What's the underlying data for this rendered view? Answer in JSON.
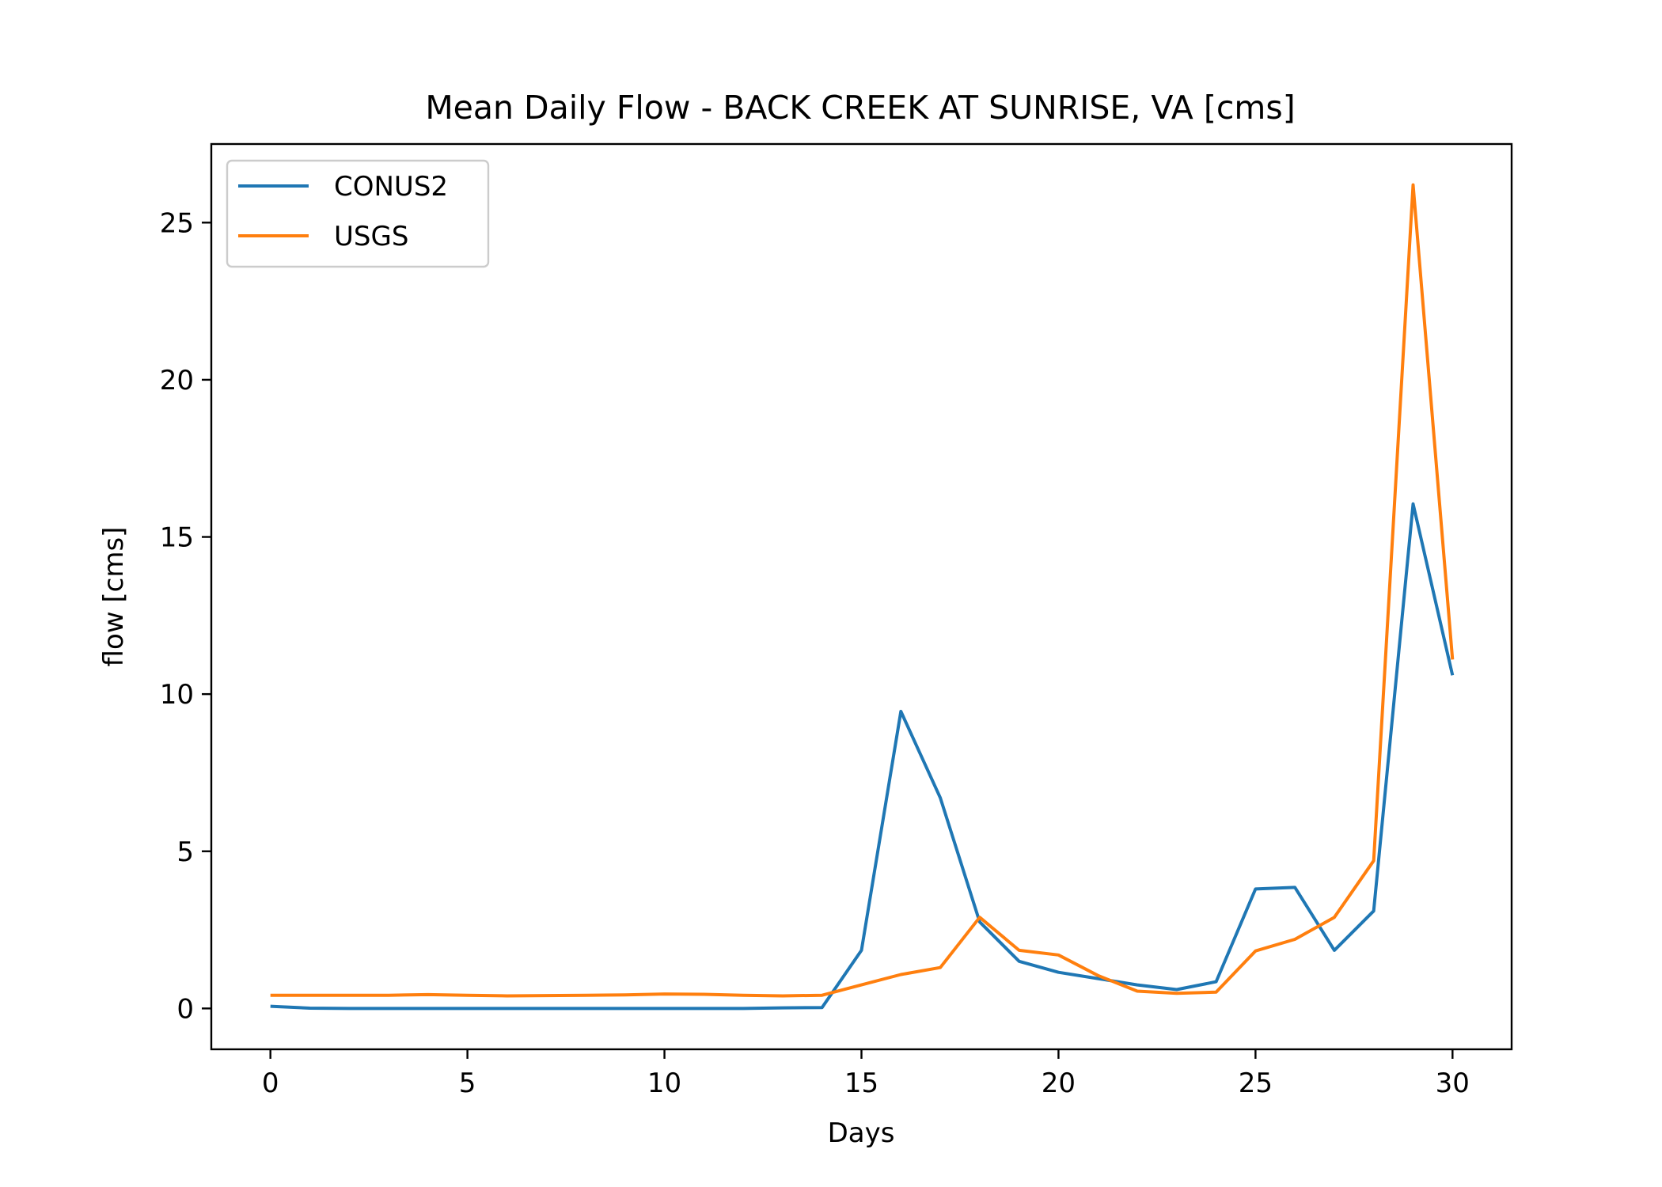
{
  "chart_data": {
    "type": "line",
    "title": "Mean Daily Flow - BACK CREEK AT SUNRISE, VA [cms]",
    "xlabel": "Days",
    "ylabel": "flow [cms]",
    "xlim": [
      -1.5,
      31.5
    ],
    "ylim": [
      -1.3,
      27.5
    ],
    "xticks": [
      0,
      5,
      10,
      15,
      20,
      25,
      30
    ],
    "yticks": [
      0,
      5,
      10,
      15,
      20,
      25
    ],
    "grid": false,
    "legend_position": "upper-left",
    "x": [
      0,
      1,
      2,
      3,
      4,
      5,
      6,
      7,
      8,
      9,
      10,
      11,
      12,
      13,
      14,
      15,
      16,
      17,
      18,
      19,
      20,
      21,
      22,
      23,
      24,
      25,
      26,
      27,
      28,
      29,
      30
    ],
    "series": [
      {
        "name": "CONUS2",
        "color": "#1f77b4",
        "values": [
          0.07,
          0.01,
          0.0,
          0.0,
          0.0,
          0.0,
          0.0,
          0.0,
          0.0,
          0.0,
          0.0,
          0.0,
          0.0,
          0.02,
          0.03,
          1.85,
          9.45,
          6.7,
          2.75,
          1.5,
          1.15,
          0.95,
          0.75,
          0.6,
          0.85,
          3.8,
          3.85,
          1.85,
          3.1,
          16.05,
          10.6
        ]
      },
      {
        "name": "USGS",
        "color": "#ff7f0e",
        "values": [
          0.42,
          0.42,
          0.42,
          0.42,
          0.44,
          0.42,
          0.4,
          0.41,
          0.42,
          0.43,
          0.46,
          0.45,
          0.42,
          0.4,
          0.42,
          0.75,
          1.08,
          1.3,
          2.9,
          1.85,
          1.7,
          1.05,
          0.55,
          0.48,
          0.52,
          1.83,
          2.2,
          2.9,
          4.7,
          26.2,
          11.1
        ]
      }
    ]
  }
}
